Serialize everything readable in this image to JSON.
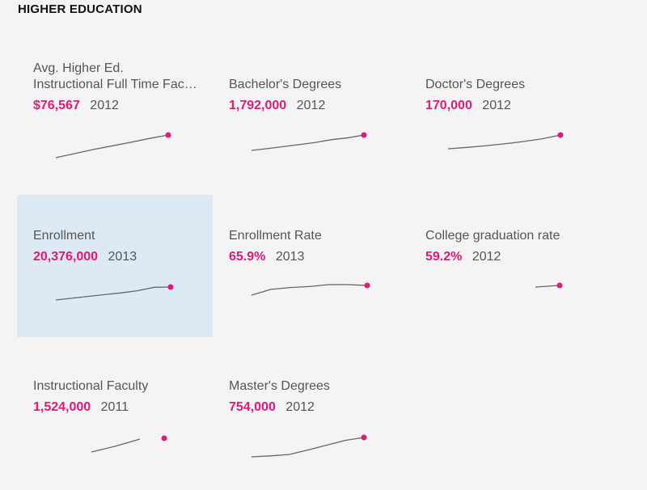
{
  "header": {
    "title": "HIGHER EDUCATION"
  },
  "colors": {
    "accent": "#e2187a",
    "line": "#666666",
    "highlight": "#ddeaf3",
    "background": "#f4f4f4"
  },
  "cards": [
    {
      "label_line1": "Avg. Higher Ed.",
      "label_line2": "Instructional Full Time Fac…",
      "value": "$76,567",
      "year": "2012",
      "highlighted": false
    },
    {
      "label": "Bachelor's Degrees",
      "value": "1,792,000",
      "year": "2012",
      "highlighted": false
    },
    {
      "label": "Doctor's Degrees",
      "value": "170,000",
      "year": "2012",
      "highlighted": false
    },
    {
      "label": "Enrollment",
      "value": "20,376,000",
      "year": "2013",
      "highlighted": true
    },
    {
      "label": "Enrollment Rate",
      "value": "65.9%",
      "year": "2013",
      "highlighted": false
    },
    {
      "label": "College graduation rate",
      "value": "59.2%",
      "year": "2012",
      "highlighted": false
    },
    {
      "label": "Instructional Faculty",
      "value": "1,524,000",
      "year": "2011",
      "highlighted": false
    },
    {
      "label": "Master's Degrees",
      "value": "754,000",
      "year": "2012",
      "highlighted": false
    }
  ],
  "chart_data": [
    {
      "type": "line",
      "series": [
        {
          "values": [
            0.0,
            0.18,
            0.36,
            0.52,
            0.68,
            0.85,
            1.0
          ]
        }
      ],
      "last_value": "$76,567"
    },
    {
      "type": "line",
      "series": [
        {
          "values": [
            0.0,
            0.12,
            0.25,
            0.38,
            0.52,
            0.7,
            0.82,
            1.0
          ]
        }
      ],
      "last_value": "1,792,000"
    },
    {
      "type": "line",
      "series": [
        {
          "values": [
            0.0,
            0.1,
            0.22,
            0.36,
            0.52,
            0.72,
            1.0
          ]
        }
      ],
      "last_value": "170,000"
    },
    {
      "type": "line",
      "series": [
        {
          "values": [
            0.0,
            0.14,
            0.28,
            0.42,
            0.55,
            0.72,
            0.98,
            1.0
          ]
        }
      ],
      "last_value": "20,376,000"
    },
    {
      "type": "line",
      "series": [
        {
          "values": [
            0.0,
            0.55,
            0.72,
            0.82,
            1.0,
            1.0,
            0.92
          ]
        }
      ],
      "last_value": "65.9%"
    },
    {
      "type": "line",
      "series": [
        {
          "values": [
            0.0,
            1.0
          ]
        }
      ],
      "last_value": "59.2%"
    },
    {
      "type": "line",
      "series": [
        {
          "values": [
            0.0,
            0.45,
            1.0,
            null
          ]
        }
      ],
      "last_value": "1,524,000"
    },
    {
      "type": "line",
      "series": [
        {
          "values": [
            0.0,
            0.05,
            0.12,
            0.35,
            0.6,
            0.85,
            1.0
          ]
        }
      ],
      "last_value": "754,000"
    }
  ]
}
